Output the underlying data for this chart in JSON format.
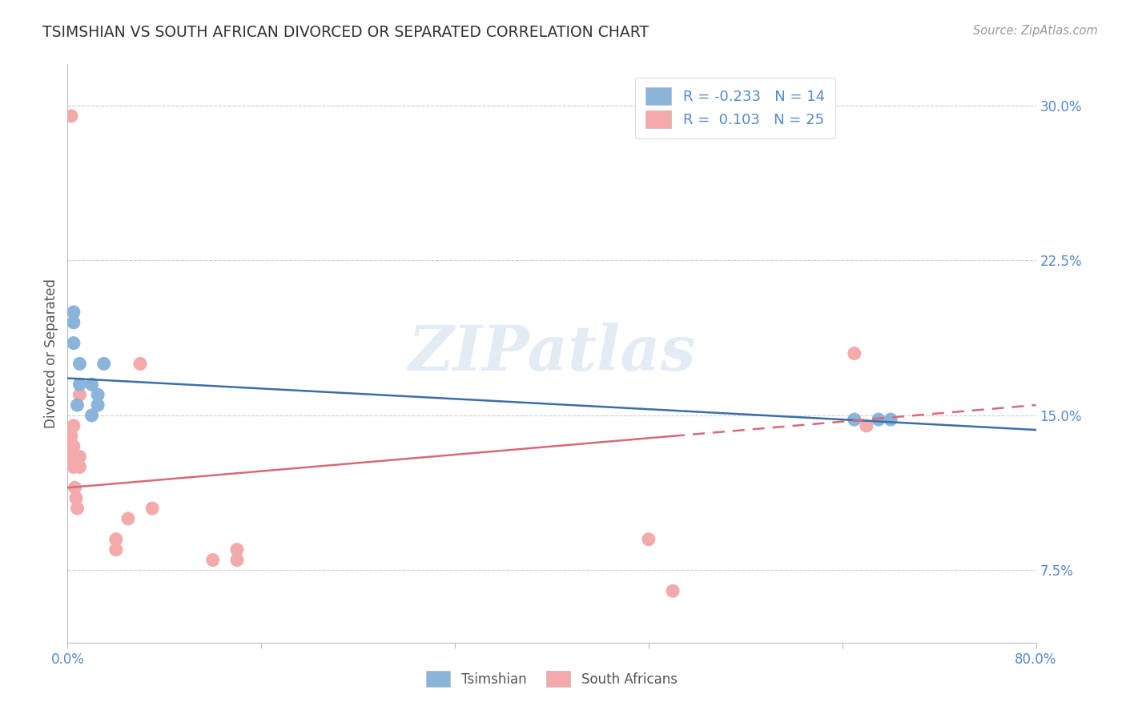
{
  "title": "TSIMSHIAN VS SOUTH AFRICAN DIVORCED OR SEPARATED CORRELATION CHART",
  "source_text": "Source: ZipAtlas.com",
  "ylabel": "Divorced or Separated",
  "xlim": [
    0.0,
    0.8
  ],
  "ylim": [
    0.04,
    0.32
  ],
  "yticks": [
    0.075,
    0.15,
    0.225,
    0.3
  ],
  "ytick_labels": [
    "7.5%",
    "15.0%",
    "22.5%",
    "30.0%"
  ],
  "xticks": [
    0.0,
    0.16,
    0.32,
    0.48,
    0.64,
    0.8
  ],
  "xtick_labels": [
    "0.0%",
    "",
    "",
    "",
    "",
    "80.0%"
  ],
  "tsimshian_x": [
    0.005,
    0.005,
    0.005,
    0.008,
    0.01,
    0.01,
    0.02,
    0.02,
    0.025,
    0.025,
    0.03,
    0.65,
    0.67,
    0.68
  ],
  "tsimshian_y": [
    0.2,
    0.195,
    0.185,
    0.155,
    0.175,
    0.165,
    0.165,
    0.15,
    0.16,
    0.155,
    0.175,
    0.148,
    0.148,
    0.148
  ],
  "south_african_x": [
    0.003,
    0.003,
    0.003,
    0.003,
    0.005,
    0.005,
    0.005,
    0.006,
    0.007,
    0.008,
    0.01,
    0.01,
    0.01,
    0.04,
    0.04,
    0.05,
    0.06,
    0.07,
    0.12,
    0.14,
    0.14,
    0.48,
    0.5,
    0.65,
    0.66
  ],
  "south_african_y": [
    0.295,
    0.13,
    0.135,
    0.14,
    0.145,
    0.135,
    0.125,
    0.115,
    0.11,
    0.105,
    0.13,
    0.125,
    0.16,
    0.09,
    0.085,
    0.1,
    0.175,
    0.105,
    0.08,
    0.08,
    0.085,
    0.09,
    0.065,
    0.18,
    0.145
  ],
  "tsimshian_R": -0.233,
  "tsimshian_N": 14,
  "south_african_R": 0.103,
  "south_african_N": 25,
  "tsimshian_color": "#8AB4D9",
  "south_african_color": "#F4AAAA",
  "tsimshian_line_color": "#3B6EA8",
  "south_african_line_color": "#D46A7A",
  "background_color": "#FFFFFF",
  "watermark_text": "ZIPatlas",
  "grid_color": "#CCCCCC",
  "tick_color": "#5588CC",
  "title_color": "#333333",
  "source_color": "#999999",
  "ylabel_color": "#555555"
}
